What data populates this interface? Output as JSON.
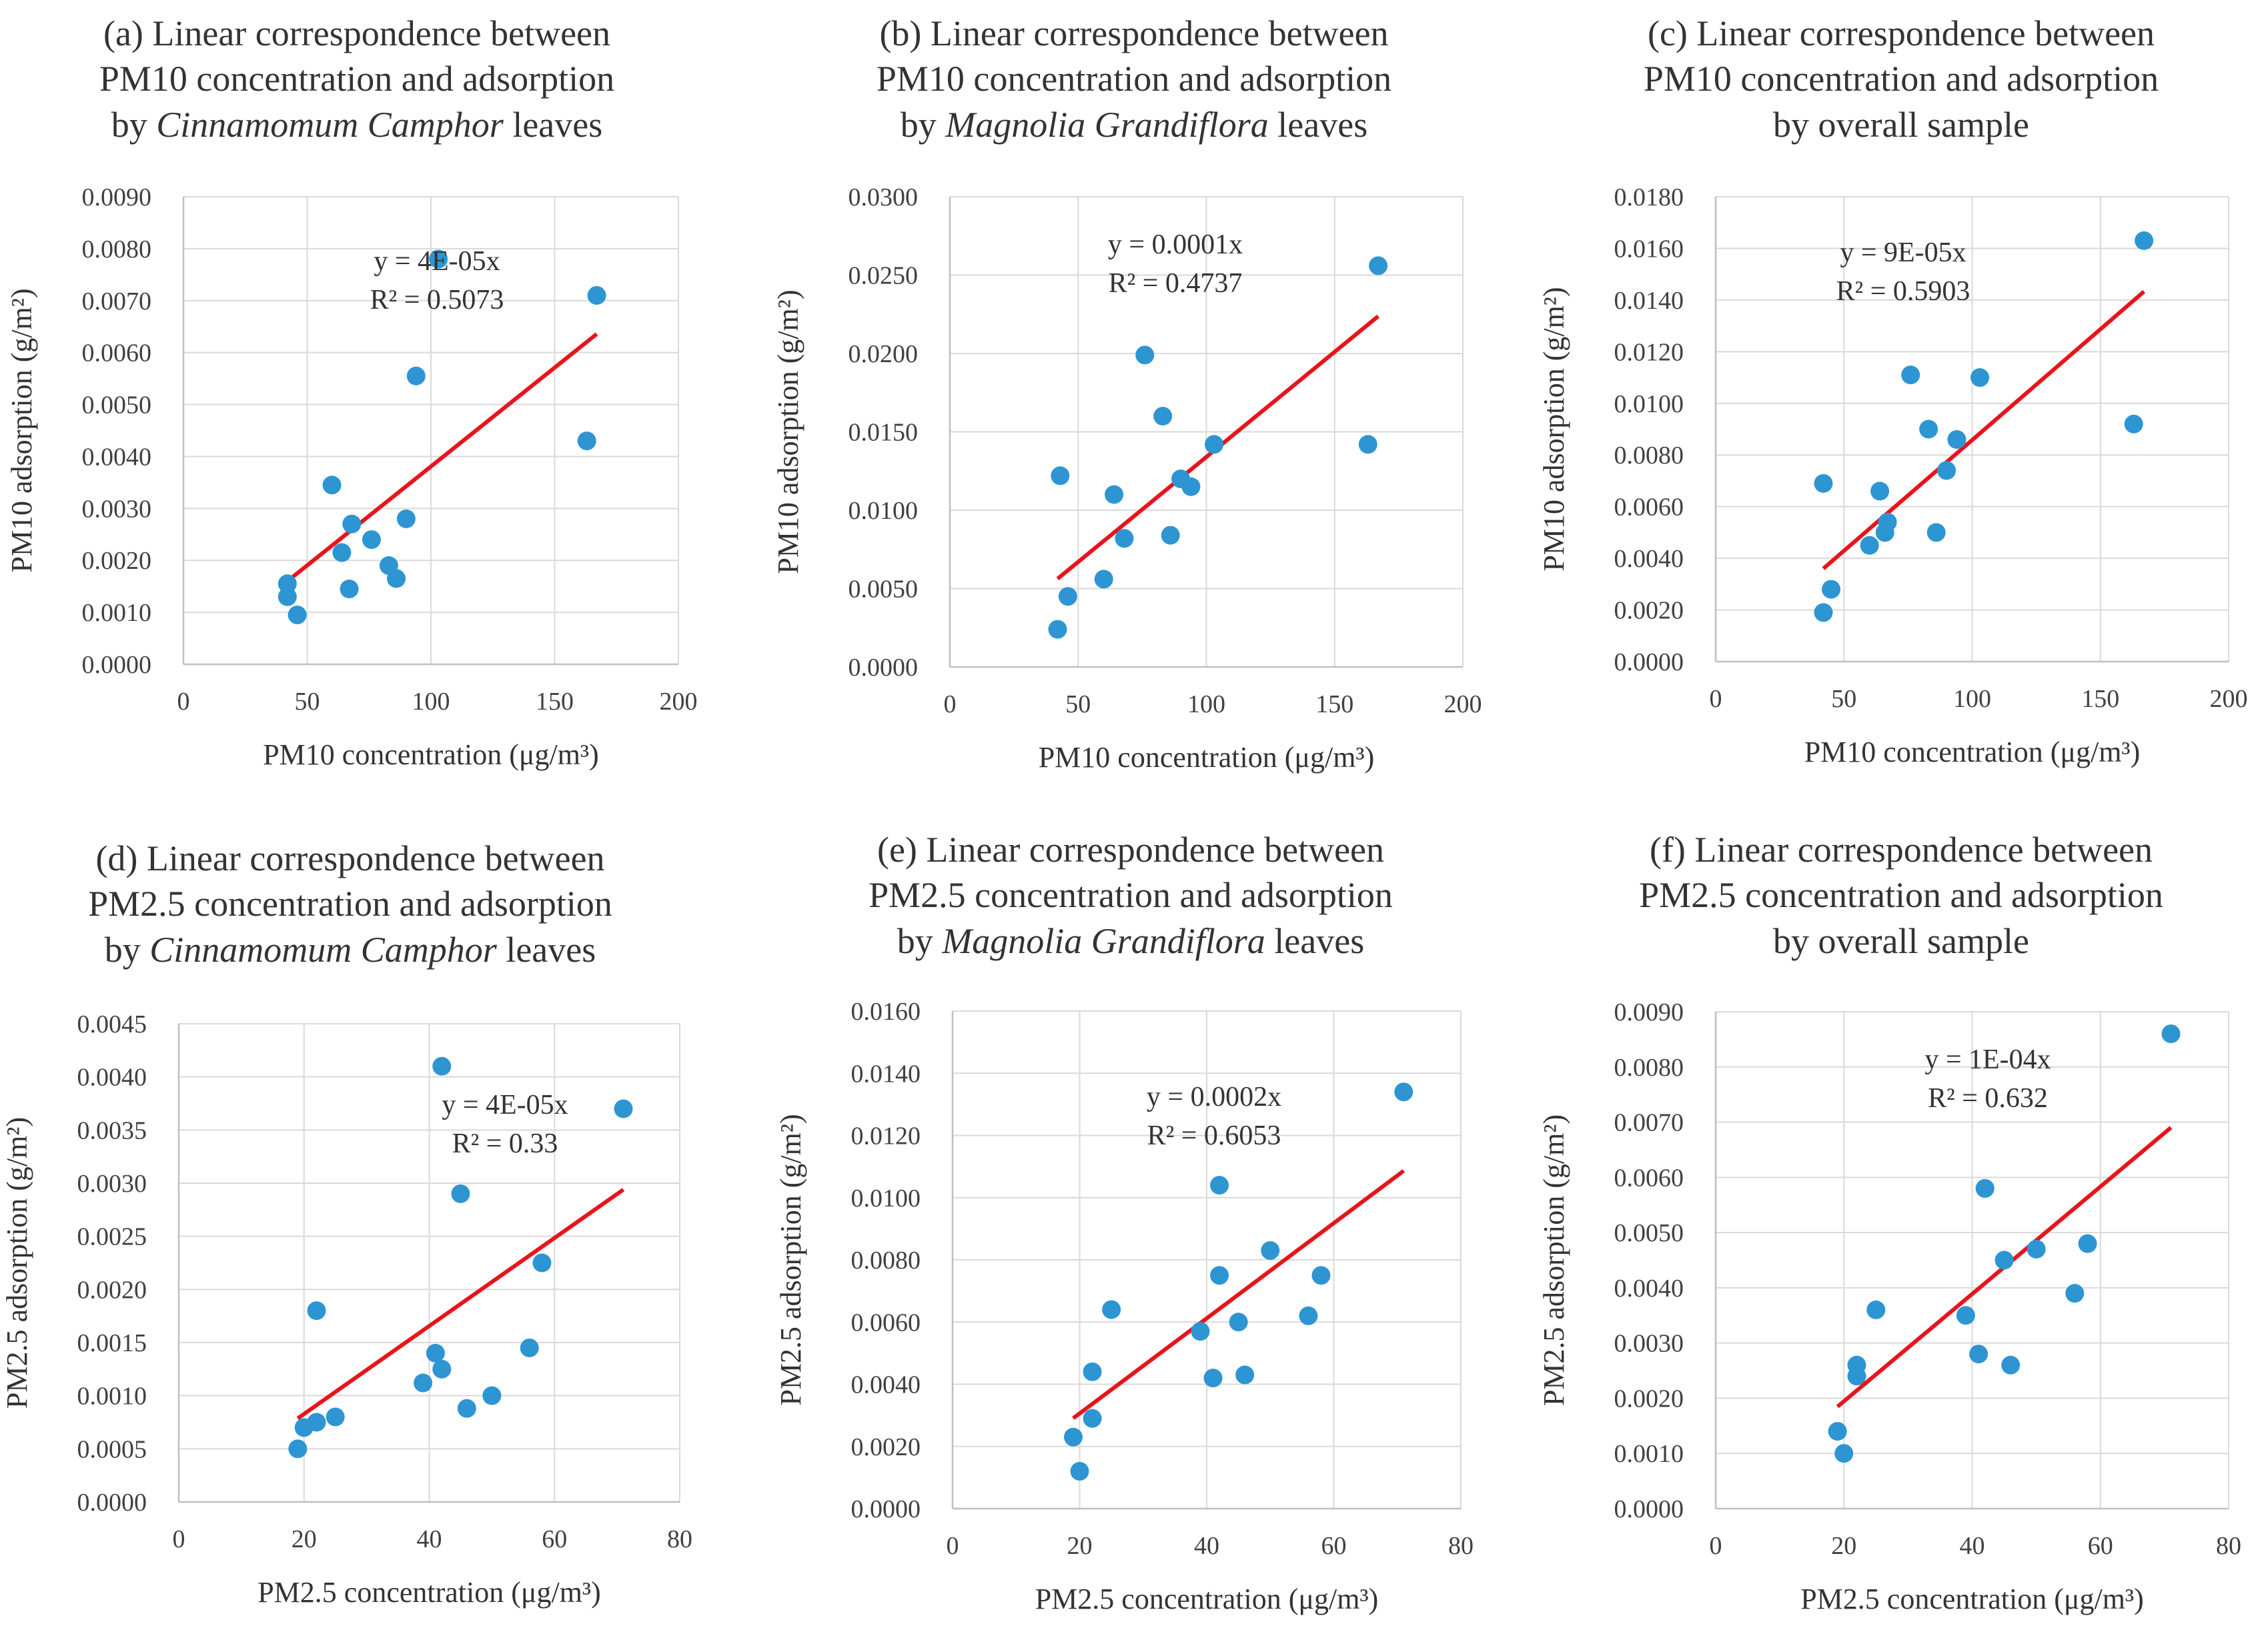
{
  "figure": {
    "colors": {
      "point": "#2e95d3",
      "trend": "#e8141b",
      "grid": "#d9d9d9",
      "axis": "#bfbfbf",
      "text": "#333333"
    }
  },
  "chart_data": [
    {
      "id": "a",
      "type": "scatter",
      "title": [
        "(a) Linear correspondence between",
        "PM10 concentration and adsorption"
      ],
      "title_line3": {
        "prefix": "by ",
        "species": "Cinnamomum Camphor",
        "suffix": " leaves"
      },
      "xlabel": "PM10 concentration (μg/m³)",
      "ylabel": "PM10 adsorption (g/m²)",
      "xlim": [
        0,
        200
      ],
      "ylim": [
        0,
        0.009
      ],
      "xticks": [
        "0",
        "50",
        "100",
        "150",
        "200"
      ],
      "yticks": [
        "0.0000",
        "0.0010",
        "0.0020",
        "0.0030",
        "0.0040",
        "0.0050",
        "0.0060",
        "0.0070",
        "0.0080",
        "0.0090"
      ],
      "equation": "y = 4E-05x",
      "r2": "R² = 0.5073",
      "trendline": {
        "slope": 3.807e-05,
        "x_start": 42,
        "x_end": 167
      },
      "points": [
        [
          42,
          0.00155
        ],
        [
          42,
          0.0013
        ],
        [
          46,
          0.00095
        ],
        [
          60,
          0.00345
        ],
        [
          64,
          0.00215
        ],
        [
          67,
          0.00145
        ],
        [
          68,
          0.0027
        ],
        [
          76,
          0.0024
        ],
        [
          83,
          0.0019
        ],
        [
          86,
          0.00165
        ],
        [
          90,
          0.0028
        ],
        [
          94,
          0.00555
        ],
        [
          103,
          0.0078
        ],
        [
          163,
          0.0043
        ],
        [
          167,
          0.0071
        ]
      ]
    },
    {
      "id": "b",
      "type": "scatter",
      "title": [
        "(b) Linear correspondence between",
        "PM10 concentration and adsorption"
      ],
      "title_line3": {
        "prefix": "by ",
        "species": "Magnolia Grandiflora",
        "suffix": " leaves"
      },
      "xlabel": "PM10 concentration (μg/m³)",
      "ylabel": "PM10 adsorption (g/m²)",
      "xlim": [
        0,
        200
      ],
      "ylim": [
        0,
        0.03
      ],
      "xticks": [
        "0",
        "50",
        "100",
        "150",
        "200"
      ],
      "yticks": [
        "0.0000",
        "0.0050",
        "0.0100",
        "0.0150",
        "0.0200",
        "0.0250",
        "0.0300"
      ],
      "equation": "y = 0.0001x",
      "r2": "R² = 0.4737",
      "trendline": {
        "slope": 0.000134,
        "x_start": 42,
        "x_end": 167
      },
      "points": [
        [
          42,
          0.0024
        ],
        [
          43,
          0.0122
        ],
        [
          46,
          0.0045
        ],
        [
          60,
          0.0056
        ],
        [
          64,
          0.011
        ],
        [
          68,
          0.0082
        ],
        [
          76,
          0.0199
        ],
        [
          83,
          0.016
        ],
        [
          86,
          0.0084
        ],
        [
          90,
          0.012
        ],
        [
          94,
          0.0115
        ],
        [
          103,
          0.0142
        ],
        [
          163,
          0.0142
        ],
        [
          167,
          0.0256
        ]
      ]
    },
    {
      "id": "c",
      "type": "scatter",
      "title": [
        "(c) Linear correspondence between",
        "PM10 concentration and adsorption"
      ],
      "title_line3": {
        "prefix": "by overall sample",
        "species": "",
        "suffix": ""
      },
      "xlabel": "PM10 concentration (μg/m³)",
      "ylabel": "PM10 adsorption (g/m²)",
      "xlim": [
        0,
        200
      ],
      "ylim": [
        0,
        0.018
      ],
      "xticks": [
        "0",
        "50",
        "100",
        "150",
        "200"
      ],
      "yticks": [
        "0.0000",
        "0.0020",
        "0.0040",
        "0.0060",
        "0.0080",
        "0.0100",
        "0.0120",
        "0.0140",
        "0.0160",
        "0.0180"
      ],
      "equation": "y = 9E-05x",
      "r2": "R² = 0.5903",
      "trendline": {
        "slope": 8.58e-05,
        "x_start": 42,
        "x_end": 167
      },
      "points": [
        [
          42,
          0.0019
        ],
        [
          42,
          0.0069
        ],
        [
          45,
          0.0028
        ],
        [
          60,
          0.0045
        ],
        [
          64,
          0.0066
        ],
        [
          66,
          0.005
        ],
        [
          67,
          0.0054
        ],
        [
          76,
          0.0111
        ],
        [
          83,
          0.009
        ],
        [
          86,
          0.005
        ],
        [
          90,
          0.0074
        ],
        [
          94,
          0.0086
        ],
        [
          103,
          0.011
        ],
        [
          163,
          0.0092
        ],
        [
          167,
          0.0163
        ]
      ]
    },
    {
      "id": "d",
      "type": "scatter",
      "title": [
        "(d) Linear correspondence between",
        "PM2.5 concentration and adsorption"
      ],
      "title_line3": {
        "prefix": "by ",
        "species": "Cinnamomum Camphor",
        "suffix": " leaves"
      },
      "xlabel": "PM2.5 concentration (μg/m³)",
      "ylabel": "PM2.5 adsorption (g/m²)",
      "xlim": [
        0,
        80
      ],
      "ylim": [
        0,
        0.0045
      ],
      "xticks": [
        "0",
        "20",
        "40",
        "60",
        "80"
      ],
      "yticks": [
        "0.0000",
        "0.0005",
        "0.0010",
        "0.0015",
        "0.0020",
        "0.0025",
        "0.0030",
        "0.0035",
        "0.0040",
        "0.0045"
      ],
      "equation": "y = 4E-05x",
      "r2": "R² = 0.33",
      "trendline": {
        "slope": 4.14e-05,
        "x_start": 19,
        "x_end": 71
      },
      "points": [
        [
          19,
          0.0005
        ],
        [
          20,
          0.0007
        ],
        [
          22,
          0.00075
        ],
        [
          22,
          0.0018
        ],
        [
          25,
          0.0008
        ],
        [
          39,
          0.00112
        ],
        [
          41,
          0.0014
        ],
        [
          42,
          0.00125
        ],
        [
          42,
          0.0041
        ],
        [
          45,
          0.0029
        ],
        [
          46,
          0.00088
        ],
        [
          50,
          0.001
        ],
        [
          56,
          0.00145
        ],
        [
          58,
          0.00225
        ],
        [
          71,
          0.0037
        ]
      ]
    },
    {
      "id": "e",
      "type": "scatter",
      "title": [
        "(e) Linear correspondence between",
        "PM2.5 concentration and adsorption"
      ],
      "title_line3": {
        "prefix": "by ",
        "species": "Magnolia Grandiflora",
        "suffix": " leaves"
      },
      "xlabel": "PM2.5 concentration (μg/m³)",
      "ylabel": "PM2.5 adsorption (g/m²)",
      "xlim": [
        0,
        80
      ],
      "ylim": [
        0,
        0.016
      ],
      "xticks": [
        "0",
        "20",
        "40",
        "60",
        "80"
      ],
      "yticks": [
        "0.0000",
        "0.0020",
        "0.0040",
        "0.0060",
        "0.0080",
        "0.0100",
        "0.0120",
        "0.0140",
        "0.0160"
      ],
      "equation": "y = 0.0002x",
      "r2": "R² = 0.6053",
      "trendline": {
        "slope": 0.000153,
        "x_start": 19,
        "x_end": 71
      },
      "points": [
        [
          19,
          0.0023
        ],
        [
          20,
          0.0012
        ],
        [
          22,
          0.0029
        ],
        [
          22,
          0.0044
        ],
        [
          25,
          0.0064
        ],
        [
          39,
          0.0057
        ],
        [
          41,
          0.0042
        ],
        [
          42,
          0.0075
        ],
        [
          42,
          0.0104
        ],
        [
          45,
          0.006
        ],
        [
          46,
          0.0043
        ],
        [
          50,
          0.0083
        ],
        [
          56,
          0.0062
        ],
        [
          58,
          0.0075
        ],
        [
          71,
          0.0134
        ]
      ]
    },
    {
      "id": "f",
      "type": "scatter",
      "title": [
        "(f) Linear correspondence between",
        "PM2.5 concentration and adsorption"
      ],
      "title_line3": {
        "prefix": "by overall sample",
        "species": "",
        "suffix": ""
      },
      "xlabel": "PM2.5 concentration (μg/m³)",
      "ylabel": "PM2.5 adsorption (g/m²)",
      "xlim": [
        0,
        80
      ],
      "ylim": [
        0,
        0.009
      ],
      "xticks": [
        "0",
        "20",
        "40",
        "60",
        "80"
      ],
      "yticks": [
        "0.0000",
        "0.0010",
        "0.0020",
        "0.0030",
        "0.0040",
        "0.0050",
        "0.0060",
        "0.0070",
        "0.0080",
        "0.0090"
      ],
      "equation": "y = 1E-04x",
      "r2": "R² = 0.632",
      "trendline": {
        "slope": 9.72e-05,
        "x_start": 19,
        "x_end": 71
      },
      "points": [
        [
          19,
          0.0014
        ],
        [
          20,
          0.001
        ],
        [
          22,
          0.0026
        ],
        [
          22,
          0.0024
        ],
        [
          25,
          0.0036
        ],
        [
          39,
          0.0035
        ],
        [
          41,
          0.0028
        ],
        [
          42,
          0.0058
        ],
        [
          42,
          0.0058
        ],
        [
          45,
          0.0045
        ],
        [
          46,
          0.0026
        ],
        [
          50,
          0.0047
        ],
        [
          56,
          0.0039
        ],
        [
          58,
          0.0048
        ],
        [
          71,
          0.0086
        ]
      ]
    }
  ]
}
